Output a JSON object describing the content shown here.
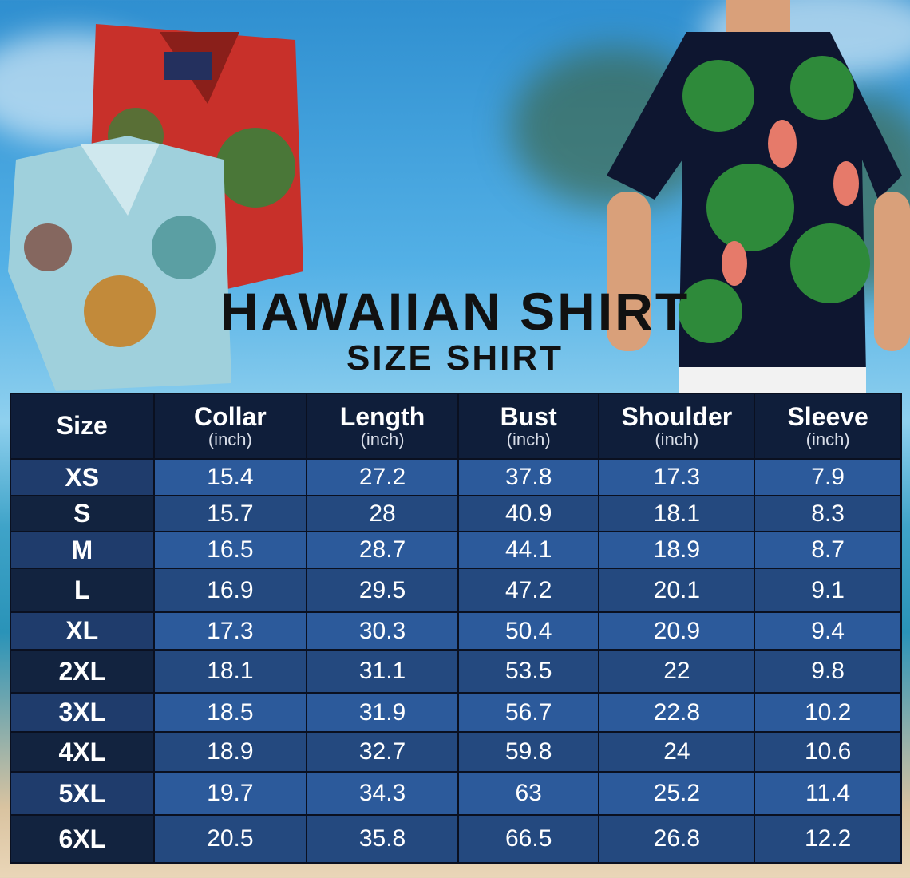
{
  "title": "HAWAIIAN SHIRT",
  "subtitle": "SIZE SHIRT",
  "table": {
    "headers": [
      {
        "label": "Size",
        "unit": ""
      },
      {
        "label": "Collar",
        "unit": "(inch)"
      },
      {
        "label": "Length",
        "unit": "(inch)"
      },
      {
        "label": "Bust",
        "unit": "(inch)"
      },
      {
        "label": "Shoulder",
        "unit": "(inch)"
      },
      {
        "label": "Sleeve",
        "unit": "(inch)"
      }
    ],
    "rows": [
      [
        "XS",
        "15.4",
        "27.2",
        "37.8",
        "17.3",
        "7.9"
      ],
      [
        "S",
        "15.7",
        "28",
        "40.9",
        "18.1",
        "8.3"
      ],
      [
        "M",
        "16.5",
        "28.7",
        "44.1",
        "18.9",
        "8.7"
      ],
      [
        "L",
        "16.9",
        "29.5",
        "47.2",
        "20.1",
        "9.1"
      ],
      [
        "XL",
        "17.3",
        "30.3",
        "50.4",
        "20.9",
        "9.4"
      ],
      [
        "2XL",
        "18.1",
        "31.1",
        "53.5",
        "22",
        "9.8"
      ],
      [
        "3XL",
        "18.5",
        "31.9",
        "56.7",
        "22.8",
        "10.2"
      ],
      [
        "4XL",
        "18.9",
        "32.7",
        "59.8",
        "24",
        "10.6"
      ],
      [
        "5XL",
        "19.7",
        "34.3",
        "63",
        "25.2",
        "11.4"
      ],
      [
        "6XL",
        "20.5",
        "35.8",
        "66.5",
        "26.8",
        "12.2"
      ]
    ]
  },
  "colors": {
    "header_bg": "#0f1e3a",
    "row_light": "#2c5a9b",
    "row_dark": "#24497f",
    "size_col": "#12233f"
  }
}
